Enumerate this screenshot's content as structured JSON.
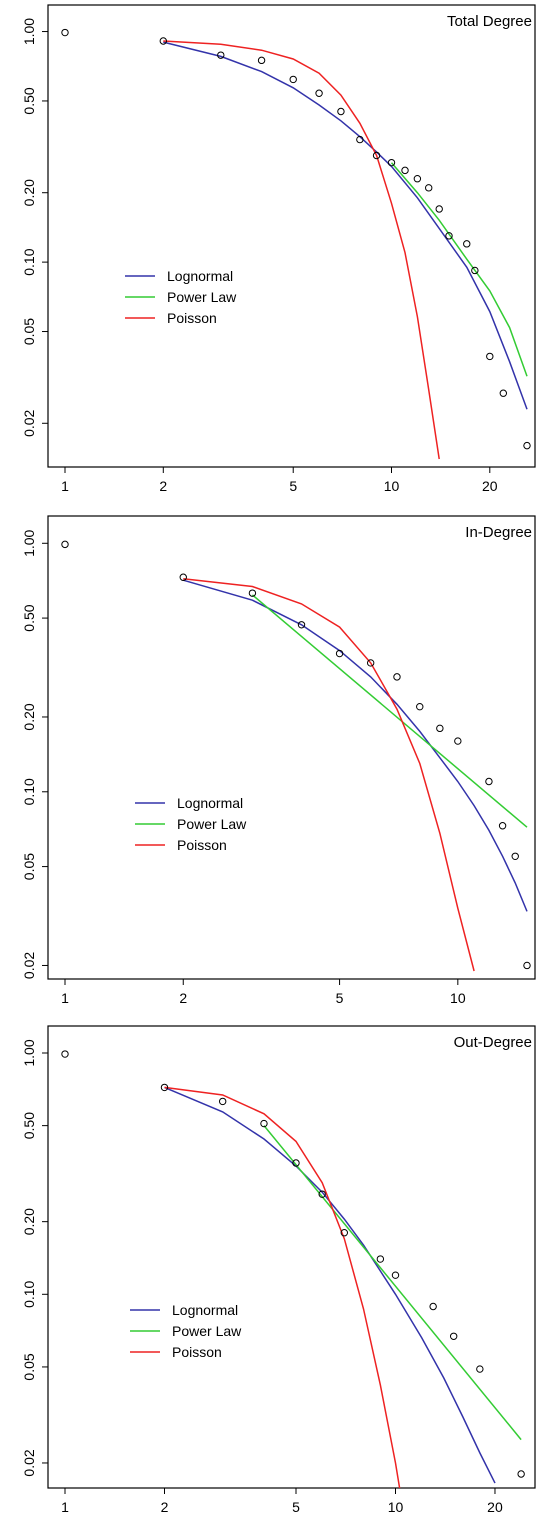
{
  "colors": {
    "lognormal": "#3333aa",
    "power_law": "#33cc33",
    "poisson": "#ee2222",
    "points": "#000000",
    "frame": "#000000"
  },
  "chart_data": [
    {
      "type": "scatter",
      "title": "Total Degree",
      "scale": {
        "x": "log",
        "y": "log"
      },
      "xlim": [
        1,
        26
      ],
      "ylim": [
        0.014,
        1.1
      ],
      "xticks": [
        1,
        2,
        5,
        10,
        20
      ],
      "xtick_labels": [
        "1",
        "2",
        "5",
        "10",
        "20"
      ],
      "yticks": [
        0.02,
        0.05,
        0.1,
        0.2,
        0.5,
        1
      ],
      "ytick_labels": [
        "0.02",
        "0.05",
        "0.10",
        "0.20",
        "0.50",
        "1.00"
      ],
      "legend_position": "center-left",
      "legend": [
        "Lognormal",
        "Power Law",
        "Poisson"
      ],
      "points": {
        "x": [
          1,
          2,
          3,
          4,
          5,
          6,
          7,
          8,
          9,
          10,
          11,
          12,
          13,
          14,
          15,
          17,
          18,
          20,
          22,
          26
        ],
        "y": [
          0.99,
          0.91,
          0.79,
          0.75,
          0.62,
          0.54,
          0.45,
          0.34,
          0.29,
          0.27,
          0.25,
          0.23,
          0.21,
          0.17,
          0.13,
          0.12,
          0.092,
          0.039,
          0.027,
          0.016
        ]
      },
      "series": [
        {
          "name": "Lognormal",
          "x": [
            2,
            3,
            4,
            5,
            6,
            7,
            8,
            9,
            10,
            12,
            14,
            17,
            20,
            23,
            26
          ],
          "y": [
            0.9,
            0.78,
            0.67,
            0.57,
            0.48,
            0.41,
            0.35,
            0.3,
            0.26,
            0.19,
            0.14,
            0.095,
            0.061,
            0.037,
            0.023
          ]
        },
        {
          "name": "Power Law",
          "x": [
            10,
            12,
            14,
            17,
            20,
            23,
            26
          ],
          "y": [
            0.27,
            0.2,
            0.152,
            0.103,
            0.075,
            0.052,
            0.032
          ]
        },
        {
          "name": "Poisson",
          "x": [
            2,
            3,
            4,
            5,
            6,
            7,
            8,
            9,
            10,
            11,
            12,
            13,
            14
          ],
          "y": [
            0.91,
            0.88,
            0.83,
            0.76,
            0.66,
            0.53,
            0.4,
            0.29,
            0.18,
            0.11,
            0.058,
            0.028,
            0.014
          ]
        }
      ]
    },
    {
      "type": "scatter",
      "title": "In-Degree",
      "scale": {
        "x": "log",
        "y": "log"
      },
      "xlim": [
        1,
        15
      ],
      "ylim": [
        0.019,
        1.1
      ],
      "xticks": [
        1,
        2,
        5,
        10
      ],
      "xtick_labels": [
        "1",
        "2",
        "5",
        "10"
      ],
      "yticks": [
        0.02,
        0.05,
        0.1,
        0.2,
        0.5,
        1
      ],
      "ytick_labels": [
        "0.02",
        "0.05",
        "0.10",
        "0.20",
        "0.50",
        "1.00"
      ],
      "legend_position": "center-left",
      "legend": [
        "Lognormal",
        "Power Law",
        "Poisson"
      ],
      "points": {
        "x": [
          1,
          2,
          3,
          4,
          5,
          6,
          7,
          8,
          9,
          10,
          12,
          13,
          14,
          15
        ],
        "y": [
          0.99,
          0.73,
          0.63,
          0.47,
          0.36,
          0.33,
          0.29,
          0.22,
          0.18,
          0.16,
          0.11,
          0.073,
          0.055,
          0.02
        ]
      },
      "series": [
        {
          "name": "Lognormal",
          "x": [
            2,
            3,
            4,
            5,
            6,
            7,
            8,
            9,
            10,
            11,
            12,
            13,
            14,
            15
          ],
          "y": [
            0.71,
            0.59,
            0.47,
            0.37,
            0.29,
            0.225,
            0.175,
            0.137,
            0.11,
            0.088,
            0.07,
            0.055,
            0.043,
            0.033
          ]
        },
        {
          "name": "Power Law",
          "x": [
            3,
            15
          ],
          "y": [
            0.62,
            0.072
          ]
        },
        {
          "name": "Poisson",
          "x": [
            2,
            3,
            4,
            5,
            6,
            7,
            8,
            9,
            10,
            11
          ],
          "y": [
            0.72,
            0.67,
            0.57,
            0.46,
            0.33,
            0.215,
            0.13,
            0.068,
            0.034,
            0.019
          ]
        }
      ]
    },
    {
      "type": "scatter",
      "title": "Out-Degree",
      "scale": {
        "x": "log",
        "y": "log"
      },
      "xlim": [
        1,
        25
      ],
      "ylim": [
        0.017,
        1.1
      ],
      "xticks": [
        1,
        2,
        5,
        10,
        20
      ],
      "xtick_labels": [
        "1",
        "2",
        "5",
        "10",
        "20"
      ],
      "yticks": [
        0.02,
        0.05,
        0.1,
        0.2,
        0.5,
        1
      ],
      "ytick_labels": [
        "0.02",
        "0.05",
        "0.10",
        "0.20",
        "0.50",
        "1.00"
      ],
      "legend_position": "center-left",
      "legend": [
        "Lognormal",
        "Power Law",
        "Poisson"
      ],
      "points": {
        "x": [
          1,
          2,
          3,
          4,
          5,
          6,
          7,
          9,
          10,
          13,
          15,
          18,
          24
        ],
        "y": [
          0.99,
          0.72,
          0.63,
          0.51,
          0.35,
          0.26,
          0.18,
          0.14,
          0.12,
          0.089,
          0.067,
          0.049,
          0.018
        ]
      },
      "series": [
        {
          "name": "Lognormal",
          "x": [
            2,
            3,
            4,
            5,
            6,
            7,
            8,
            10,
            12,
            14,
            16,
            18,
            20
          ],
          "y": [
            0.72,
            0.57,
            0.44,
            0.34,
            0.265,
            0.205,
            0.16,
            0.1,
            0.066,
            0.045,
            0.031,
            0.022,
            0.0165
          ]
        },
        {
          "name": "Power Law",
          "x": [
            4,
            24
          ],
          "y": [
            0.5,
            0.025
          ]
        },
        {
          "name": "Poisson",
          "x": [
            2,
            3,
            4,
            5,
            6,
            7,
            8,
            9,
            10,
            11
          ],
          "y": [
            0.72,
            0.67,
            0.56,
            0.43,
            0.29,
            0.17,
            0.087,
            0.042,
            0.02,
            0.009
          ]
        }
      ]
    }
  ]
}
